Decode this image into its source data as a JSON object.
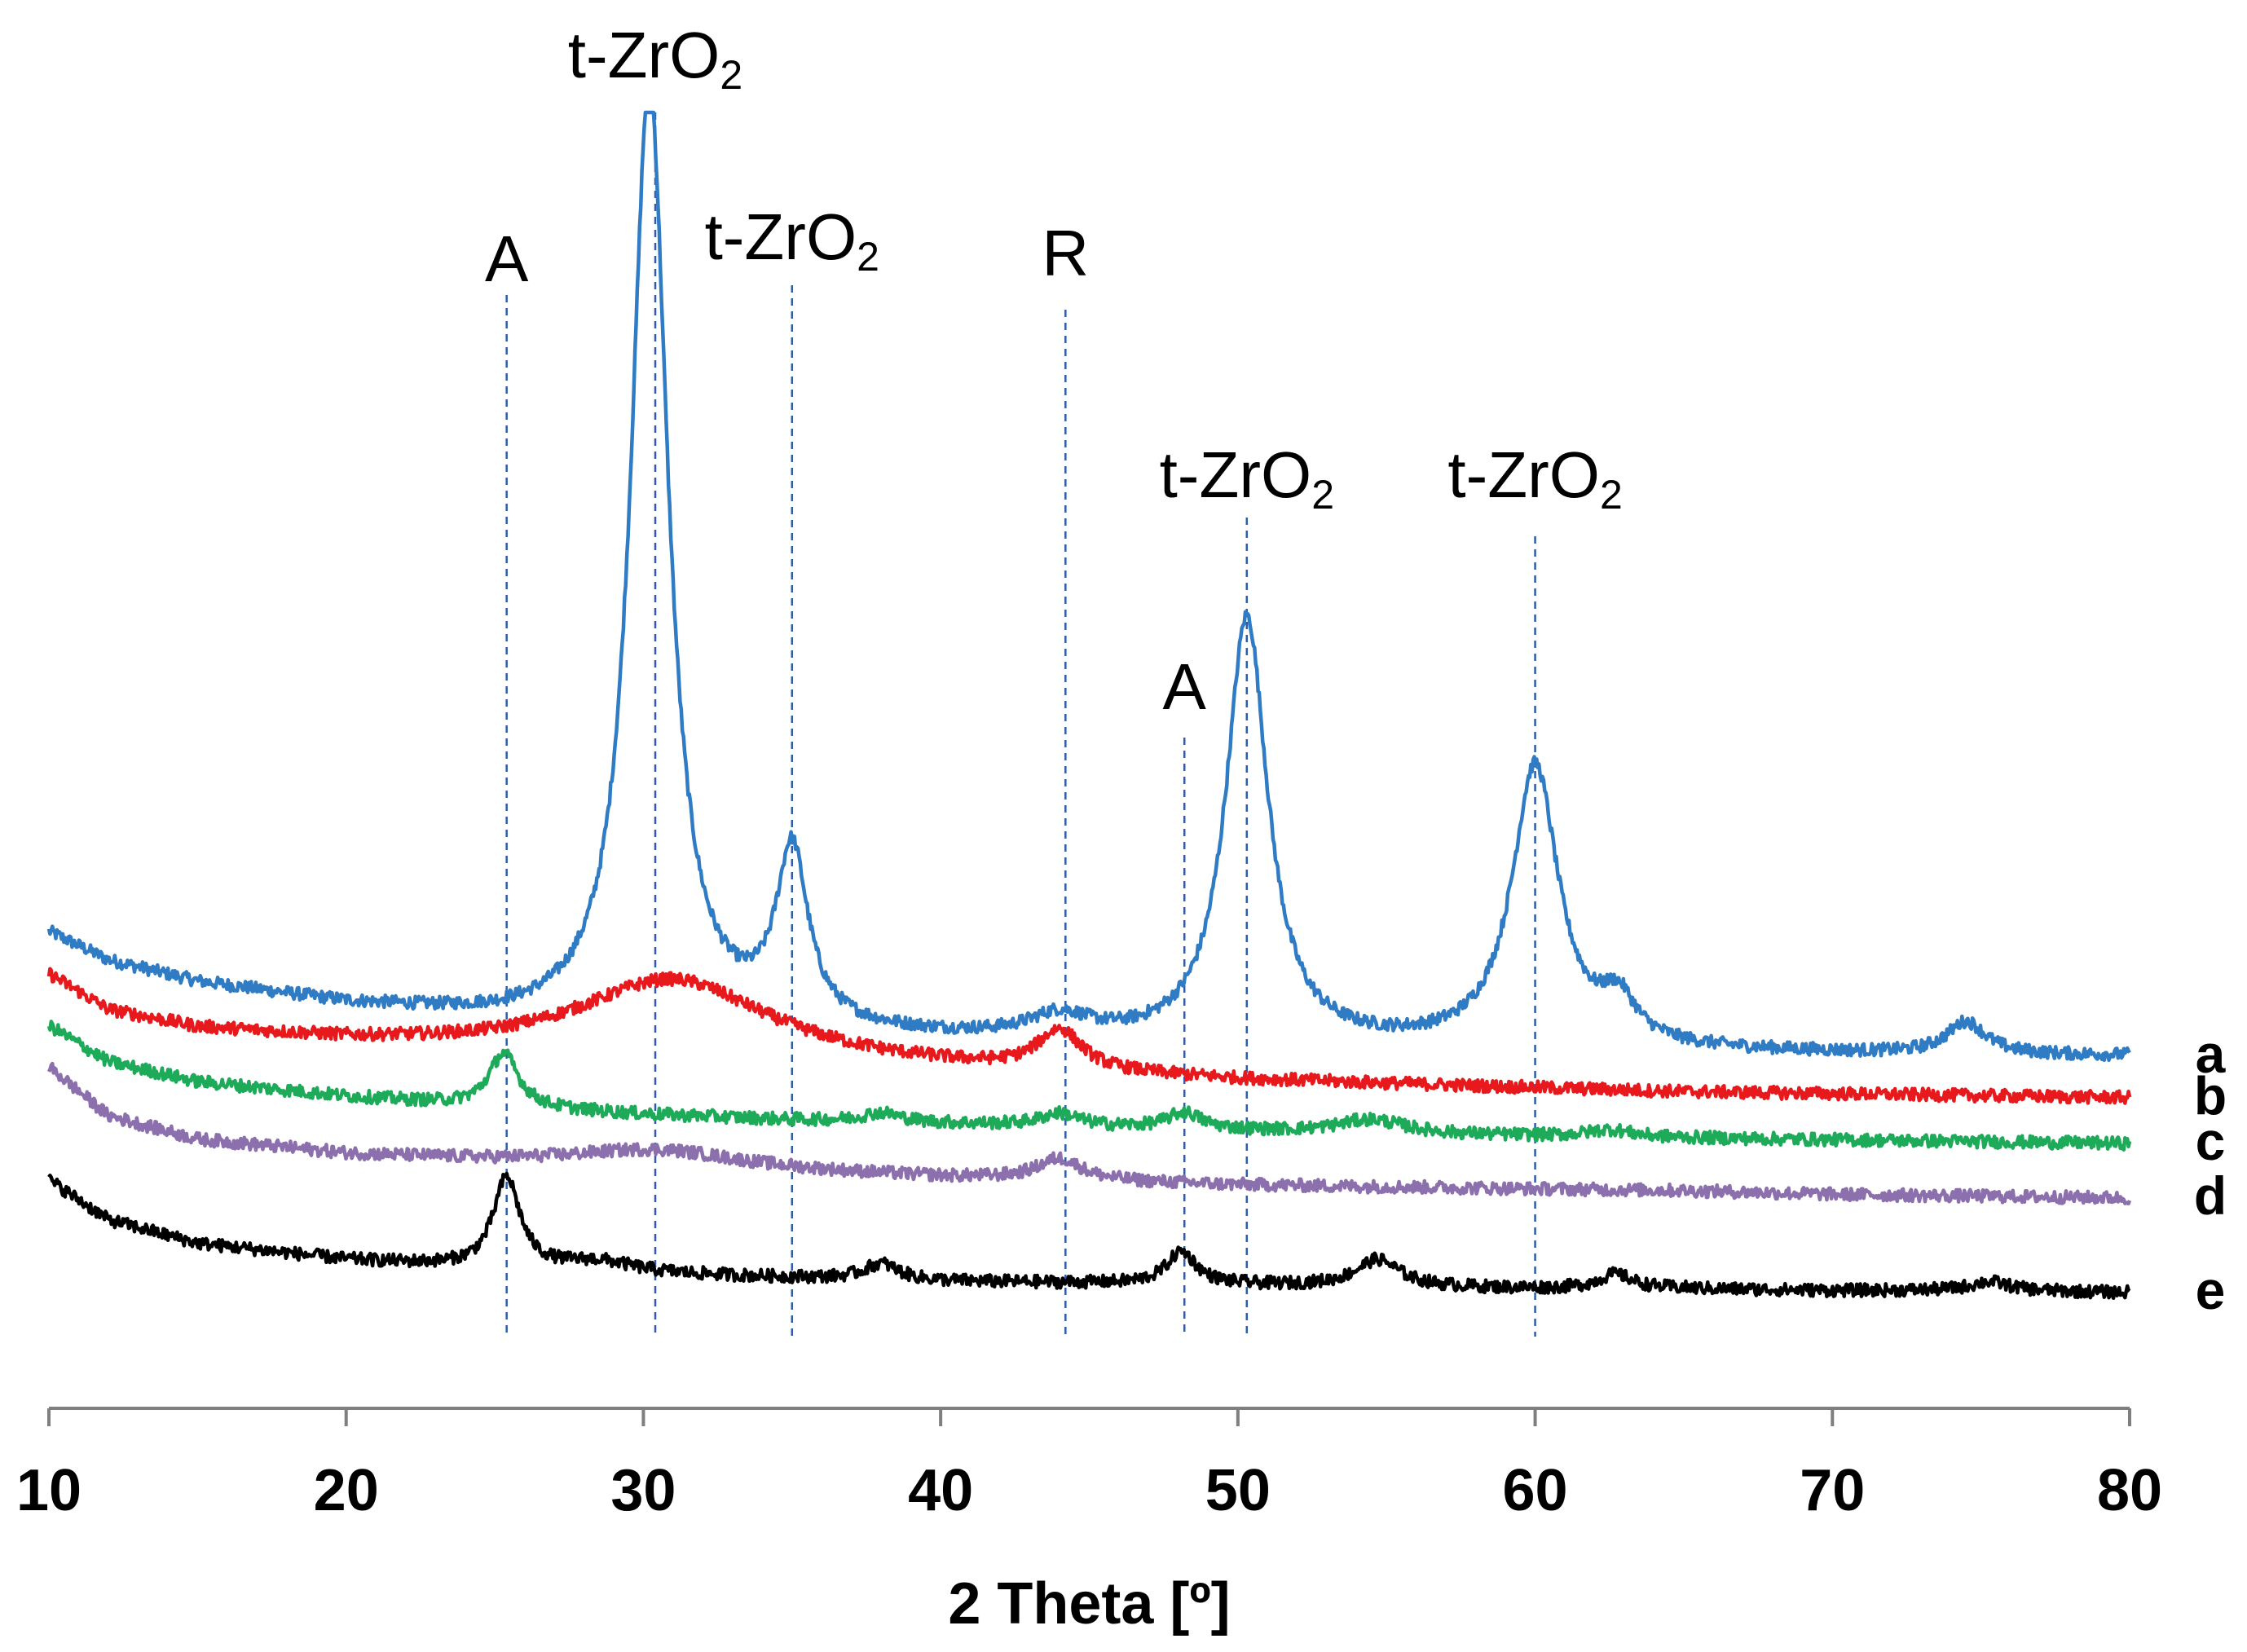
{
  "chart_data": {
    "type": "line",
    "title": "",
    "xlabel": "2 Theta [º]",
    "ylabel": "",
    "xlim": [
      10,
      80
    ],
    "x_ticks": [
      10,
      20,
      30,
      40,
      50,
      60,
      70,
      80
    ],
    "grid": false,
    "series": [
      {
        "name": "a",
        "color": "#2F7BC4",
        "base": 0.78,
        "baseline": [
          [
            10,
            1.46
          ],
          [
            12,
            1.3
          ],
          [
            15,
            1.18
          ],
          [
            20,
            1.06
          ],
          [
            25,
            0.98
          ],
          [
            30,
            0.93
          ],
          [
            35,
            0.9
          ],
          [
            40,
            0.87
          ],
          [
            45,
            0.85
          ],
          [
            50,
            0.83
          ],
          [
            55,
            0.82
          ],
          [
            60,
            0.81
          ],
          [
            65,
            0.8
          ],
          [
            70,
            0.79
          ],
          [
            75,
            0.78
          ],
          [
            80,
            0.78
          ]
        ],
        "peaks": [
          {
            "x": 30.2,
            "height": 5.2,
            "width": 0.75
          },
          {
            "x": 35.0,
            "height": 0.95,
            "width": 0.65
          },
          {
            "x": 44.0,
            "height": 0.12,
            "width": 1.2
          },
          {
            "x": 50.3,
            "height": 2.35,
            "width": 0.85
          },
          {
            "x": 60.0,
            "height": 1.55,
            "width": 0.95
          },
          {
            "x": 62.8,
            "height": 0.22,
            "width": 0.7
          },
          {
            "x": 74.5,
            "height": 0.18,
            "width": 0.8
          }
        ]
      },
      {
        "name": "b",
        "color": "#E8191C",
        "base": 0.55,
        "baseline": [
          [
            10,
            1.22
          ],
          [
            12,
            1.02
          ],
          [
            15,
            0.92
          ],
          [
            20,
            0.85
          ],
          [
            25,
            0.8
          ],
          [
            30,
            0.76
          ],
          [
            35,
            0.73
          ],
          [
            40,
            0.7
          ],
          [
            45,
            0.67
          ],
          [
            50,
            0.64
          ],
          [
            55,
            0.62
          ],
          [
            60,
            0.6
          ],
          [
            65,
            0.58
          ],
          [
            70,
            0.57
          ],
          [
            75,
            0.56
          ],
          [
            80,
            0.55
          ]
        ],
        "peaks": [
          {
            "x": 31.0,
            "height": 0.45,
            "width": 4.0
          },
          {
            "x": 44.0,
            "height": 0.22,
            "width": 0.9
          }
        ]
      },
      {
        "name": "c",
        "color": "#1DAA59",
        "base": 0.3,
        "baseline": [
          [
            10,
            0.95
          ],
          [
            12,
            0.75
          ],
          [
            15,
            0.64
          ],
          [
            20,
            0.56
          ],
          [
            25,
            0.5
          ],
          [
            30,
            0.46
          ],
          [
            35,
            0.43
          ],
          [
            40,
            0.41
          ],
          [
            45,
            0.39
          ],
          [
            50,
            0.37
          ],
          [
            55,
            0.35
          ],
          [
            60,
            0.34
          ],
          [
            65,
            0.33
          ],
          [
            70,
            0.32
          ],
          [
            75,
            0.31
          ],
          [
            80,
            0.3
          ]
        ],
        "peaks": [
          {
            "x": 25.3,
            "height": 0.3,
            "width": 0.6
          },
          {
            "x": 38.0,
            "height": 0.05,
            "width": 0.8
          },
          {
            "x": 44.0,
            "height": 0.07,
            "width": 0.8
          },
          {
            "x": 48.2,
            "height": 0.09,
            "width": 0.7
          },
          {
            "x": 54.5,
            "height": 0.08,
            "width": 1.4
          },
          {
            "x": 62.5,
            "height": 0.04,
            "width": 0.9
          }
        ]
      },
      {
        "name": "d",
        "color": "#8C6FAD",
        "base": 0.0,
        "baseline": [
          [
            10,
            0.72
          ],
          [
            12,
            0.45
          ],
          [
            15,
            0.32
          ],
          [
            20,
            0.24
          ],
          [
            25,
            0.2
          ],
          [
            30,
            0.17
          ],
          [
            35,
            0.14
          ],
          [
            40,
            0.11
          ],
          [
            45,
            0.09
          ],
          [
            50,
            0.07
          ],
          [
            55,
            0.06
          ],
          [
            60,
            0.05
          ],
          [
            65,
            0.04
          ],
          [
            70,
            0.02
          ],
          [
            75,
            0.01
          ],
          [
            80,
            0.0
          ]
        ],
        "peaks": [
          {
            "x": 30.5,
            "height": 0.1,
            "width": 3.5
          },
          {
            "x": 44.0,
            "height": 0.12,
            "width": 0.9
          }
        ]
      },
      {
        "name": "e",
        "color": "#000000",
        "base": -0.52,
        "baseline": [
          [
            10,
            0.1
          ],
          [
            12,
            -0.12
          ],
          [
            15,
            -0.25
          ],
          [
            20,
            -0.34
          ],
          [
            25,
            -0.39
          ],
          [
            30,
            -0.42
          ],
          [
            35,
            -0.44
          ],
          [
            40,
            -0.46
          ],
          [
            45,
            -0.47
          ],
          [
            50,
            -0.48
          ],
          [
            55,
            -0.49
          ],
          [
            60,
            -0.5
          ],
          [
            65,
            -0.5
          ],
          [
            70,
            -0.51
          ],
          [
            75,
            -0.51
          ],
          [
            80,
            -0.52
          ]
        ],
        "peaks": [
          {
            "x": 25.4,
            "height": 0.5,
            "width": 0.55
          },
          {
            "x": 28.5,
            "height": 0.06,
            "width": 1.5
          },
          {
            "x": 38.0,
            "height": 0.09,
            "width": 0.7
          },
          {
            "x": 48.1,
            "height": 0.18,
            "width": 0.6
          },
          {
            "x": 54.7,
            "height": 0.15,
            "width": 0.9
          },
          {
            "x": 62.7,
            "height": 0.08,
            "width": 0.7
          },
          {
            "x": 75.3,
            "height": 0.05,
            "width": 0.8
          }
        ]
      }
    ],
    "annotations": [
      {
        "label": "A",
        "sub": "",
        "x": 25.4
      },
      {
        "label": "t-ZrO",
        "sub": "2",
        "x": 30.4
      },
      {
        "label": "t-ZrO",
        "sub": "2",
        "x": 35.0
      },
      {
        "label": "R",
        "sub": "",
        "x": 44.2
      },
      {
        "label": "A",
        "sub": "",
        "x": 48.2
      },
      {
        "label": "t-ZrO",
        "sub": "2",
        "x": 50.3
      },
      {
        "label": "t-ZrO",
        "sub": "2",
        "x": 60.0
      }
    ]
  }
}
